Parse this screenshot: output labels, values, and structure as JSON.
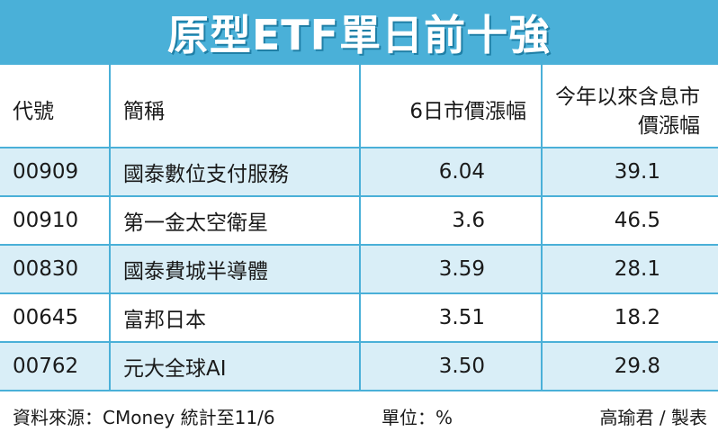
{
  "title": "原型ETF單日前十強",
  "table": {
    "headers": [
      "代號",
      "簡稱",
      "6日市價漲幅",
      "今年以來含息市價漲幅"
    ],
    "rows": [
      {
        "code": "00909",
        "name": "國泰數位支付服務",
        "change_6d": "6.04",
        "ytd": "39.1"
      },
      {
        "code": "00910",
        "name": "第一金太空衛星",
        "change_6d": "3.6",
        "ytd": "46.5"
      },
      {
        "code": "00830",
        "name": "國泰費城半導體",
        "change_6d": "3.59",
        "ytd": "28.1"
      },
      {
        "code": "00645",
        "name": "富邦日本",
        "change_6d": "3.51",
        "ytd": "18.2"
      },
      {
        "code": "00762",
        "name": "元大全球AI",
        "change_6d": "3.50",
        "ytd": "29.8"
      }
    ]
  },
  "footer": {
    "source": "資料來源：CMoney 統計至11/6",
    "unit": "單位：%",
    "credit": "高瑜君 / 製表"
  },
  "colors": {
    "accent": "#4ab0d8",
    "row_shade": "#d9eef7"
  }
}
